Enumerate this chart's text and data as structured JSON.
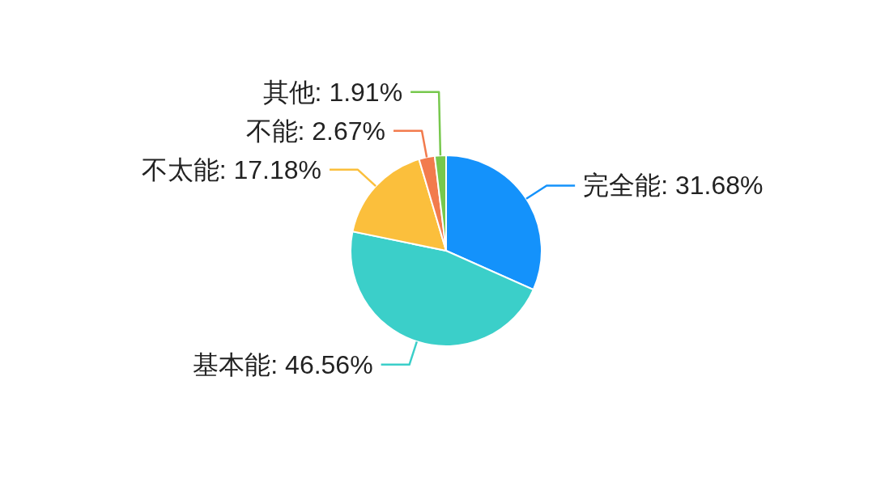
{
  "chart_data": {
    "type": "pie",
    "categories": [
      "完全能",
      "基本能",
      "不太能",
      "不能",
      "其他"
    ],
    "values": [
      31.68,
      46.56,
      17.18,
      2.67,
      1.91
    ],
    "value_labels": [
      "31.68%",
      "46.56%",
      "17.18%",
      "2.67%",
      "1.91%"
    ],
    "colors": [
      "#1492fb",
      "#3bcfc9",
      "#fbbf3c",
      "#f27b4d",
      "#77c84d"
    ]
  }
}
